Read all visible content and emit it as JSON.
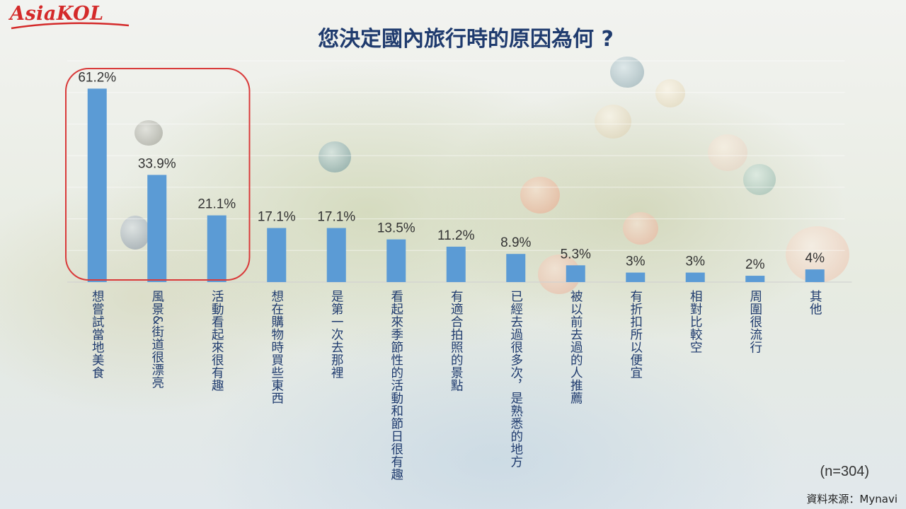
{
  "brand": {
    "logo_text": "AsiaKOL"
  },
  "title": "您決定國內旅行時的原因為何 ?",
  "footnote": "(n=304)",
  "source": "資料來源：Mynavi",
  "colors": {
    "bar": "#5b9bd5",
    "highlight_box": "#d93a3a",
    "title": "#1f3b6e",
    "logo": "#d42a2a"
  },
  "chart_data": {
    "type": "bar",
    "categories": [
      "想嘗試當地美食",
      "風景&街道很漂亮",
      "活動看起來很有趣",
      "想在購物時買些東西",
      "是第一次去那裡",
      "看起來季節性的活動和節日很有趣",
      "有適合拍照的景點",
      "已經去過很多次，是熟悉的地方",
      "被以前去過的人推薦",
      "有折扣所以便宜",
      "相對比較空",
      "周圍很流行",
      "其他"
    ],
    "values": [
      61.2,
      33.9,
      21.1,
      17.1,
      17.1,
      13.5,
      11.2,
      8.9,
      5.3,
      3,
      3,
      2,
      4
    ],
    "data_labels": [
      "61.2%",
      "33.9%",
      "21.1%",
      "17.1%",
      "17.1%",
      "13.5%",
      "11.2%",
      "8.9%",
      "5.3%",
      "3%",
      "3%",
      "2%",
      "4%"
    ],
    "unit": "%",
    "ylim": [
      0,
      70
    ],
    "grid": true,
    "legend": "none",
    "highlighted_categories": [
      0,
      1,
      2
    ]
  }
}
